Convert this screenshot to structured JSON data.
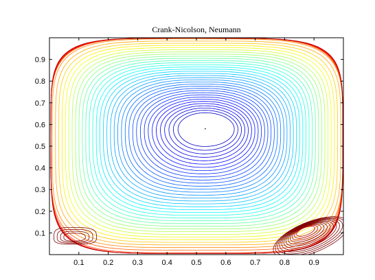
{
  "chart_data": {
    "type": "contour",
    "title": "Crank-Nicolson, Neumann",
    "xlabel": "",
    "ylabel": "",
    "xlim": [
      0,
      1
    ],
    "ylim": [
      0,
      1
    ],
    "x_ticks": [
      0.1,
      0.2,
      0.3,
      0.4,
      0.5,
      0.6,
      0.7,
      0.8,
      0.9
    ],
    "y_ticks": [
      0.1,
      0.2,
      0.3,
      0.4,
      0.5,
      0.6,
      0.7,
      0.8,
      0.9
    ],
    "x_tick_labels": [
      "0.1",
      "0.2",
      "0.3",
      "0.4",
      "0.5",
      "0.6",
      "0.7",
      "0.8",
      "0.9"
    ],
    "y_tick_labels": [
      "0.1",
      "0.2",
      "0.3",
      "0.4",
      "0.5",
      "0.6",
      "0.7",
      "0.8",
      "0.9"
    ],
    "grid": false,
    "colormap": "jet",
    "primary_vortex": {
      "center": [
        0.53,
        0.58
      ]
    },
    "secondary_vortices": [
      {
        "location": "bottom-left",
        "center": [
          0.08,
          0.08
        ]
      },
      {
        "location": "bottom-right",
        "center": [
          0.87,
          0.11
        ]
      }
    ],
    "colors": {
      "high": "#7f0000",
      "mid": "#ffff00",
      "low": "#00008f"
    }
  }
}
